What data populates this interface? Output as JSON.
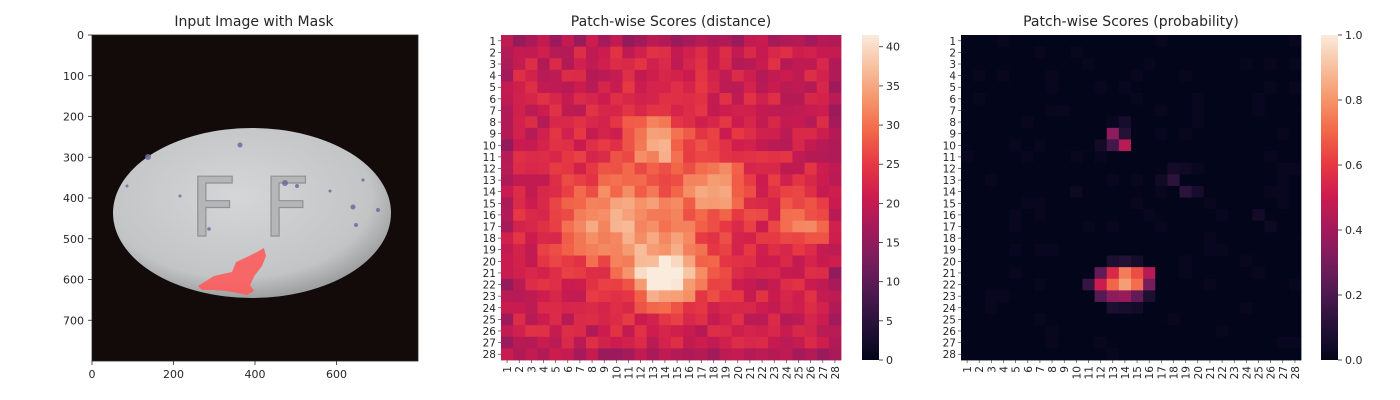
{
  "chart_data": [
    {
      "type": "image",
      "title": "Input Image with Mask",
      "xticks": [
        0,
        200,
        400,
        600
      ],
      "yticks": [
        0,
        100,
        200,
        300,
        400,
        500,
        600,
        700
      ],
      "xlim": [
        0,
        800
      ],
      "ylim": [
        800,
        0
      ],
      "pill_text": "F F",
      "colors": {
        "background": "#120b0a",
        "pill": "#c8cacb",
        "mask": "#ff5a5a"
      }
    },
    {
      "type": "heatmap",
      "title": "Patch-wise Scores (distance)",
      "rows": [
        "1",
        "2",
        "3",
        "4",
        "5",
        "6",
        "7",
        "8",
        "9",
        "10",
        "11",
        "12",
        "13",
        "14",
        "15",
        "16",
        "17",
        "18",
        "19",
        "20",
        "21",
        "22",
        "23",
        "24",
        "25",
        "26",
        "27",
        "28"
      ],
      "cols": [
        "1",
        "2",
        "3",
        "4",
        "5",
        "6",
        "7",
        "8",
        "9",
        "10",
        "11",
        "12",
        "13",
        "14",
        "15",
        "16",
        "17",
        "18",
        "19",
        "20",
        "21",
        "22",
        "23",
        "24",
        "25",
        "26",
        "27",
        "28"
      ],
      "colorbar_ticks": [
        0,
        5,
        10,
        15,
        20,
        25,
        30,
        35,
        40
      ],
      "vmin": 0,
      "vmax": 41.5,
      "colormap": "rocket",
      "base": 21,
      "blobs": [
        {
          "row": 9.5,
          "col": 13.3,
          "amp": 14,
          "sr": 1.6,
          "sc": 1.4
        },
        {
          "row": 13.5,
          "col": 18.5,
          "amp": 10,
          "sr": 1.6,
          "sc": 1.6
        },
        {
          "row": 16.5,
          "col": 25.5,
          "amp": 9,
          "sr": 1.6,
          "sc": 1.5
        },
        {
          "row": 21.5,
          "col": 14.0,
          "amp": 20,
          "sr": 1.7,
          "sc": 2.0
        },
        {
          "row": 16.5,
          "col": 9.5,
          "amp": 7,
          "sr": 2.5,
          "sc": 3.0
        },
        {
          "row": 17.5,
          "col": 12.5,
          "amp": 5,
          "sr": 3.0,
          "sc": 5.0
        },
        {
          "row": 14.0,
          "col": 14.0,
          "amp": 4,
          "sr": 5.5,
          "sc": 5.5
        }
      ],
      "noise_amp": 3.0
    },
    {
      "type": "heatmap",
      "title": "Patch-wise Scores (probability)",
      "rows": [
        "1",
        "2",
        "3",
        "4",
        "5",
        "6",
        "7",
        "8",
        "9",
        "10",
        "11",
        "12",
        "13",
        "14",
        "15",
        "16",
        "17",
        "18",
        "19",
        "20",
        "21",
        "22",
        "23",
        "24",
        "25",
        "26",
        "27",
        "28"
      ],
      "cols": [
        "1",
        "2",
        "3",
        "4",
        "5",
        "6",
        "7",
        "8",
        "9",
        "10",
        "11",
        "12",
        "13",
        "14",
        "15",
        "16",
        "17",
        "18",
        "19",
        "20",
        "21",
        "22",
        "23",
        "24",
        "25",
        "26",
        "27",
        "28"
      ],
      "colorbar_ticks": [
        0.0,
        0.2,
        0.4,
        0.6,
        0.8,
        1.0
      ],
      "colorbar_labels": [
        "0.0",
        "0.2",
        "0.4",
        "0.6",
        "0.8",
        "1.0"
      ],
      "vmin": 0,
      "vmax": 1,
      "colormap": "rocket",
      "cells": [
        [
          9,
          13,
          0.35
        ],
        [
          10,
          13,
          0.18
        ],
        [
          10,
          14,
          0.45
        ],
        [
          8,
          14,
          0.06
        ],
        [
          9,
          14,
          0.1
        ],
        [
          10,
          12,
          0.05
        ],
        [
          12,
          18,
          0.05
        ],
        [
          12,
          19,
          0.04
        ],
        [
          13,
          18,
          0.12
        ],
        [
          14,
          19,
          0.12
        ],
        [
          14,
          20,
          0.06
        ],
        [
          13,
          17,
          0.04
        ],
        [
          14,
          10,
          0.03
        ],
        [
          16,
          25,
          0.05
        ],
        [
          17,
          26,
          0.03
        ],
        [
          20,
          13,
          0.08
        ],
        [
          20,
          14,
          0.1
        ],
        [
          20,
          15,
          0.06
        ],
        [
          21,
          12,
          0.25
        ],
        [
          21,
          13,
          0.55
        ],
        [
          21,
          14,
          0.75
        ],
        [
          21,
          15,
          0.65
        ],
        [
          21,
          16,
          0.45
        ],
        [
          22,
          11,
          0.15
        ],
        [
          22,
          12,
          0.5
        ],
        [
          22,
          13,
          0.7
        ],
        [
          22,
          14,
          0.82
        ],
        [
          22,
          15,
          0.72
        ],
        [
          22,
          16,
          0.3
        ],
        [
          23,
          12,
          0.22
        ],
        [
          23,
          13,
          0.35
        ],
        [
          23,
          14,
          0.38
        ],
        [
          23,
          15,
          0.25
        ],
        [
          23,
          16,
          0.08
        ],
        [
          24,
          13,
          0.08
        ],
        [
          24,
          14,
          0.07
        ],
        [
          24,
          15,
          0.05
        ]
      ],
      "faint": 0.02
    }
  ]
}
